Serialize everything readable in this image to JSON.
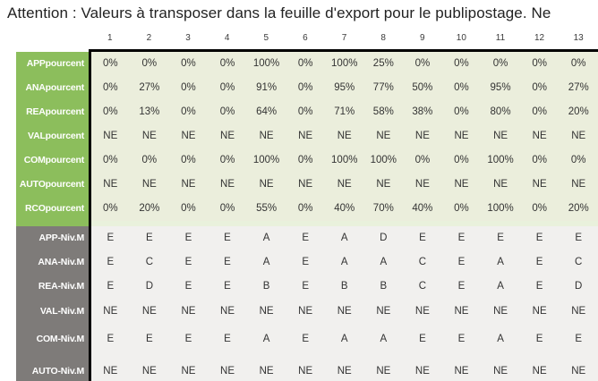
{
  "title": "Attention : Valeurs à transposer dans la feuille d'export pour le publipostage. Ne",
  "columns": [
    "1",
    "2",
    "3",
    "4",
    "5",
    "6",
    "7",
    "8",
    "9",
    "10",
    "11",
    "12",
    "13"
  ],
  "colors": {
    "green_header": "#8cbe5c",
    "green_data_bg": "#ebeedc",
    "separator_data_bg": "#e9f1dc",
    "gray_header": "#7e7b79",
    "gray_data_bg": "#f1f0ee",
    "border": "#000000",
    "text": "#333333"
  },
  "sections": [
    {
      "id": "pourcent",
      "header_bg": "#8cbe5c",
      "data_bg": "#ebeedc",
      "rows": [
        {
          "label": "APPpourcent",
          "values": [
            "0%",
            "0%",
            "0%",
            "0%",
            "100%",
            "0%",
            "100%",
            "25%",
            "0%",
            "0%",
            "0%",
            "0%",
            "0%"
          ]
        },
        {
          "label": "ANApourcent",
          "values": [
            "0%",
            "27%",
            "0%",
            "0%",
            "91%",
            "0%",
            "95%",
            "77%",
            "50%",
            "0%",
            "95%",
            "0%",
            "27%"
          ]
        },
        {
          "label": "REApourcent",
          "values": [
            "0%",
            "13%",
            "0%",
            "0%",
            "64%",
            "0%",
            "71%",
            "58%",
            "38%",
            "0%",
            "80%",
            "0%",
            "20%"
          ]
        },
        {
          "label": "VALpourcent",
          "values": [
            "NE",
            "NE",
            "NE",
            "NE",
            "NE",
            "NE",
            "NE",
            "NE",
            "NE",
            "NE",
            "NE",
            "NE",
            "NE"
          ]
        },
        {
          "label": "COMpourcent",
          "values": [
            "0%",
            "0%",
            "0%",
            "0%",
            "100%",
            "0%",
            "100%",
            "100%",
            "0%",
            "0%",
            "100%",
            "0%",
            "0%"
          ]
        },
        {
          "label": "AUTOpourcent",
          "values": [
            "NE",
            "NE",
            "NE",
            "NE",
            "NE",
            "NE",
            "NE",
            "NE",
            "NE",
            "NE",
            "NE",
            "NE",
            "NE"
          ]
        },
        {
          "label": "RCOpourcent",
          "values": [
            "0%",
            "20%",
            "0%",
            "0%",
            "55%",
            "0%",
            "40%",
            "70%",
            "40%",
            "0%",
            "100%",
            "0%",
            "20%"
          ]
        }
      ]
    },
    {
      "id": "niveau",
      "header_bg": "#7e7b79",
      "data_bg": "#f1f0ee",
      "rows": [
        {
          "label": "APP-Niv.M",
          "values": [
            "E",
            "E",
            "E",
            "E",
            "A",
            "E",
            "A",
            "D",
            "E",
            "E",
            "E",
            "E",
            "E"
          ]
        },
        {
          "label": "ANA-Niv.M",
          "values": [
            "E",
            "C",
            "E",
            "E",
            "A",
            "E",
            "A",
            "A",
            "C",
            "E",
            "A",
            "E",
            "C"
          ]
        },
        {
          "label": "REA-Niv.M",
          "values": [
            "E",
            "D",
            "E",
            "E",
            "B",
            "E",
            "B",
            "B",
            "C",
            "E",
            "A",
            "E",
            "D"
          ]
        },
        {
          "label": "VAL-Niv.M",
          "values": [
            "NE",
            "NE",
            "NE",
            "NE",
            "NE",
            "NE",
            "NE",
            "NE",
            "NE",
            "NE",
            "NE",
            "NE",
            "NE"
          ]
        },
        {
          "label": "COM-Niv.M",
          "values": [
            "E",
            "E",
            "E",
            "E",
            "A",
            "E",
            "A",
            "A",
            "E",
            "E",
            "A",
            "E",
            "E"
          ]
        },
        {
          "label": "AUTO-Niv.M",
          "values": [
            "NE",
            "NE",
            "NE",
            "NE",
            "NE",
            "NE",
            "NE",
            "NE",
            "NE",
            "NE",
            "NE",
            "NE",
            "NE"
          ]
        }
      ]
    }
  ]
}
